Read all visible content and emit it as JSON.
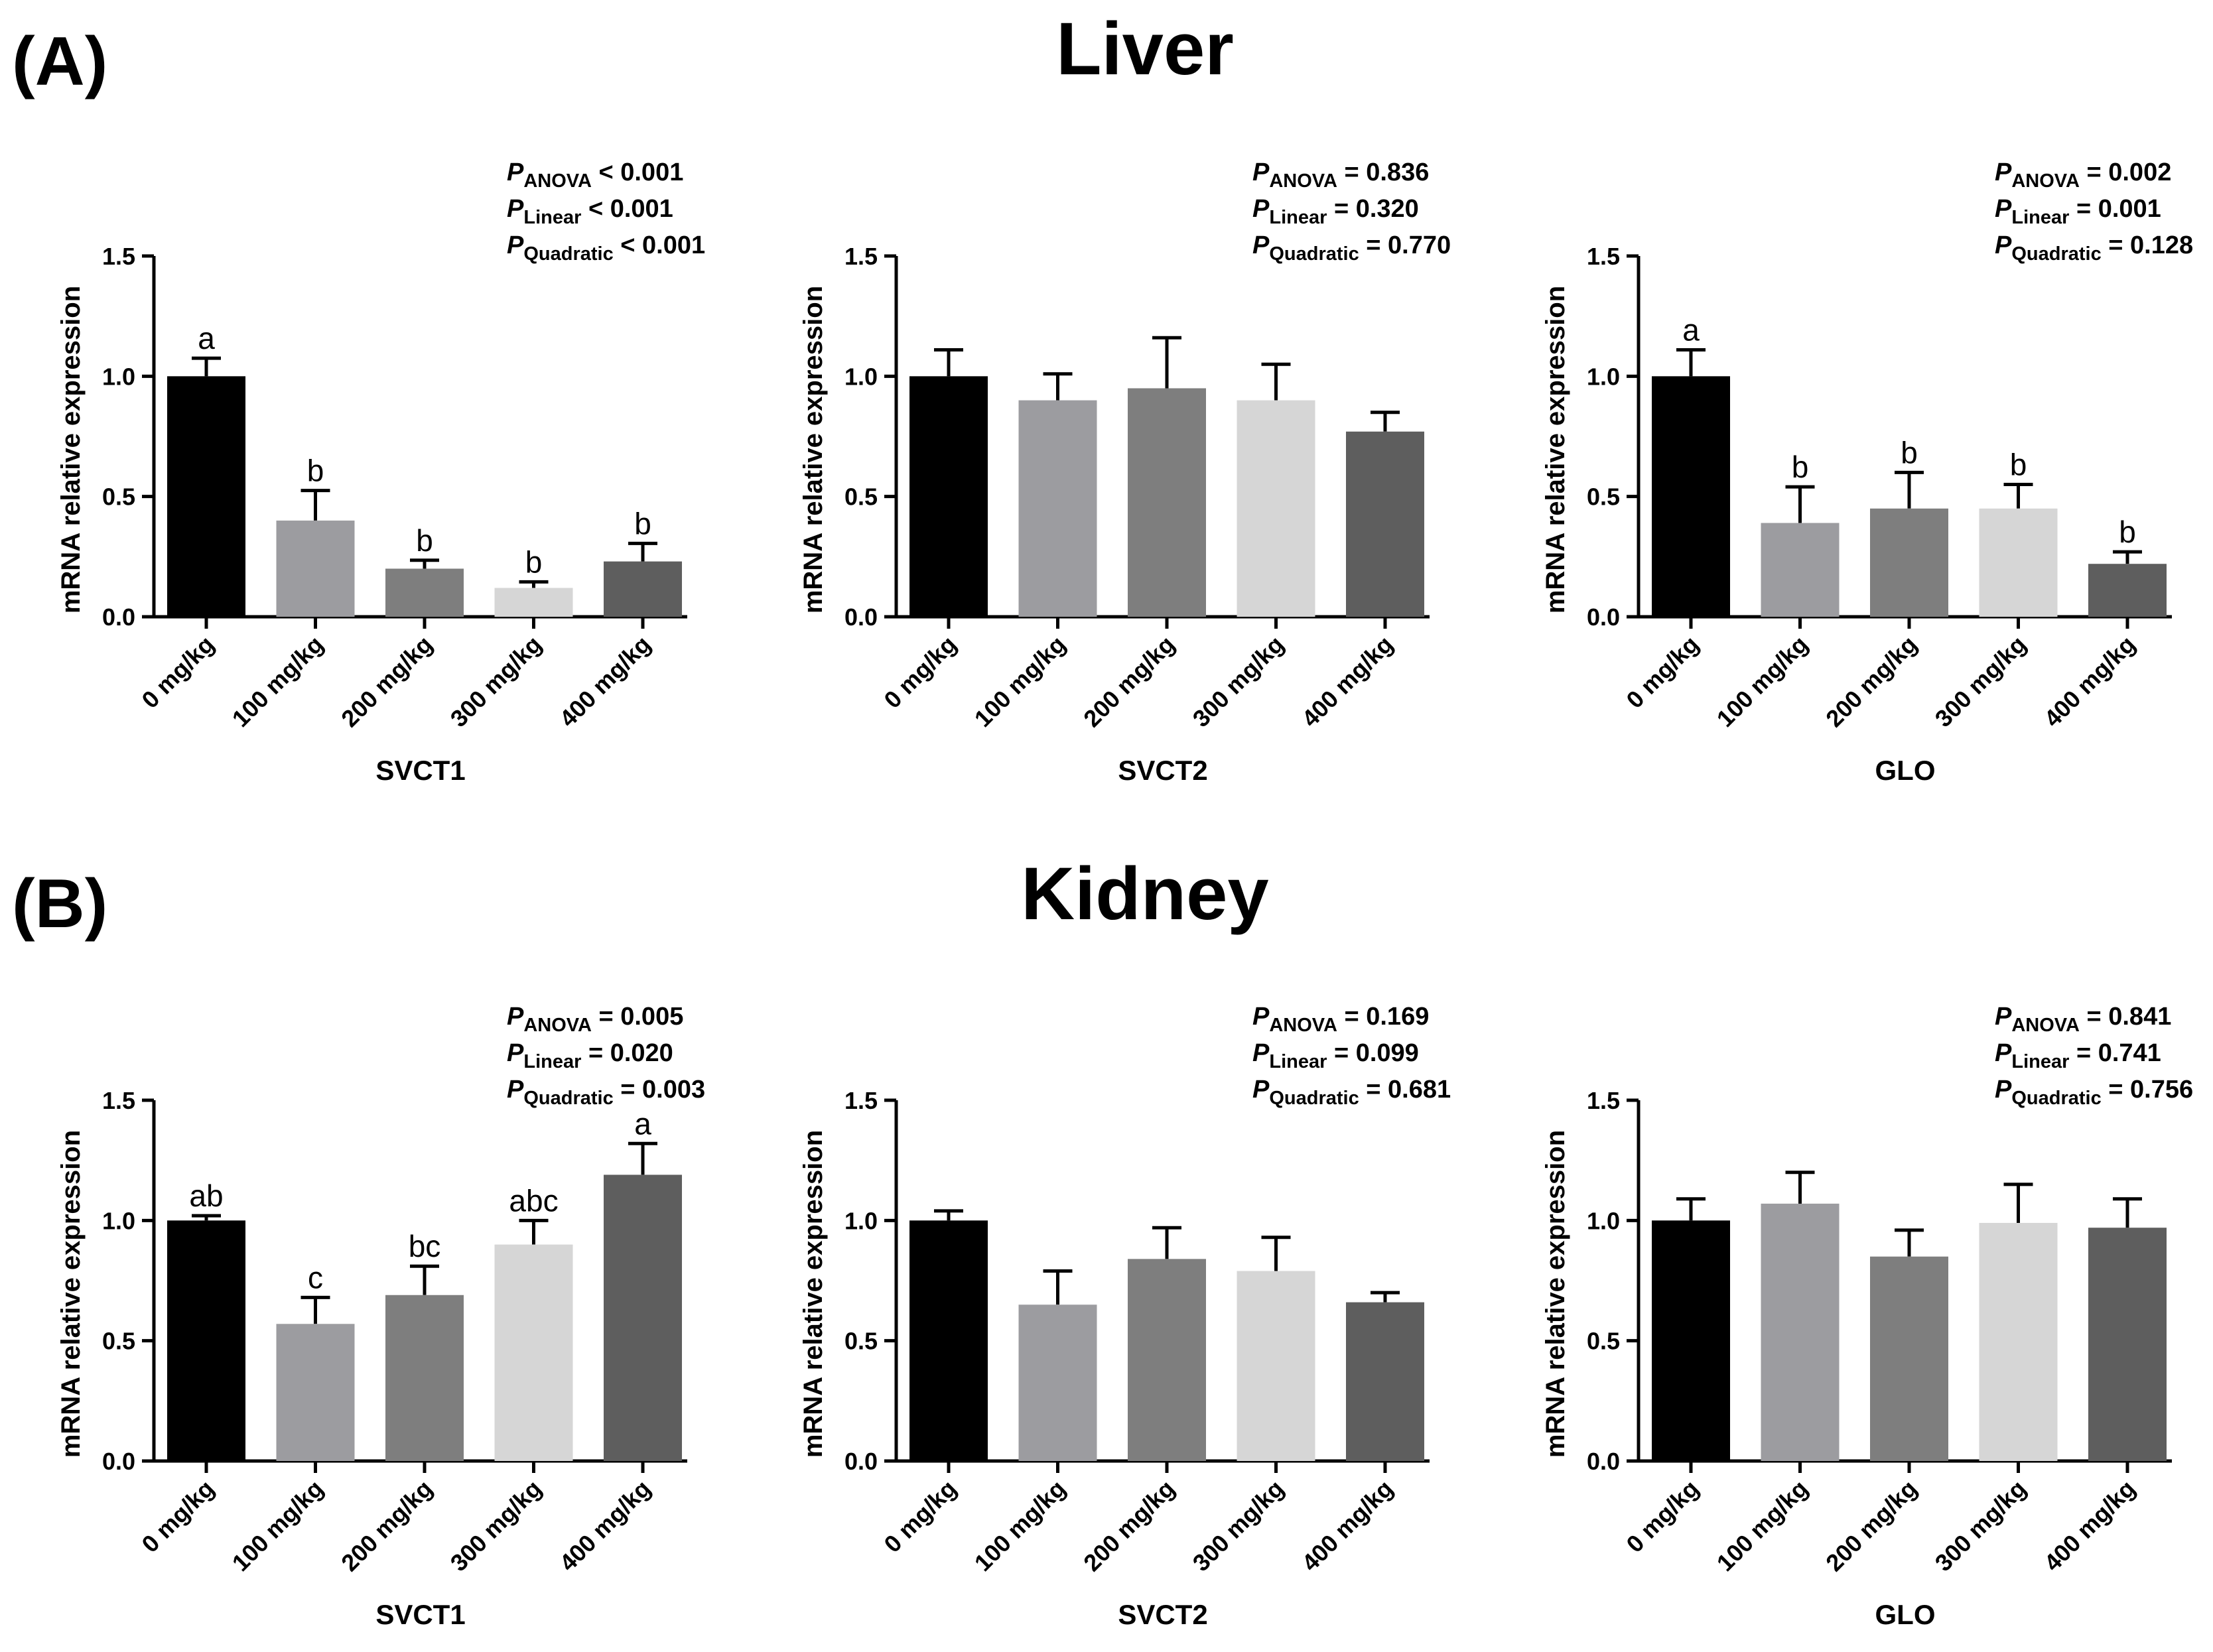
{
  "figure": {
    "panel_A": "(A)",
    "panel_B": "(B)",
    "section_A": "Liver",
    "section_B": "Kidney"
  },
  "chart_data": [
    {
      "type": "bar",
      "section": "Liver",
      "xlabel": "SVCT1",
      "ylabel": "mRNA relative expression",
      "categories": [
        "0 mg/kg",
        "100 mg/kg",
        "200 mg/kg",
        "300 mg/kg",
        "400 mg/kg"
      ],
      "values": [
        1.0,
        0.4,
        0.2,
        0.12,
        0.23
      ],
      "errors": [
        0.075,
        0.125,
        0.035,
        0.025,
        0.075
      ],
      "letters": [
        "a",
        "b",
        "b",
        "b",
        "b"
      ],
      "ylim": [
        0,
        1.5
      ],
      "yticks": [
        "0.0",
        "0.5",
        "1.0",
        "1.5"
      ],
      "stats": [
        {
          "label": "P",
          "sub": "ANOVA",
          "value": " < 0.001"
        },
        {
          "label": "P",
          "sub": "Linear",
          "value": " < 0.001"
        },
        {
          "label": "P",
          "sub": "Quadratic",
          "value": " < 0.001"
        }
      ]
    },
    {
      "type": "bar",
      "section": "Liver",
      "xlabel": "SVCT2",
      "ylabel": "mRNA relative expression",
      "categories": [
        "0 mg/kg",
        "100 mg/kg",
        "200 mg/kg",
        "300 mg/kg",
        "400 mg/kg"
      ],
      "values": [
        1.0,
        0.9,
        0.95,
        0.9,
        0.77
      ],
      "errors": [
        0.11,
        0.11,
        0.21,
        0.15,
        0.08
      ],
      "letters": [
        "",
        "",
        "",
        "",
        ""
      ],
      "ylim": [
        0,
        1.5
      ],
      "yticks": [
        "0.0",
        "0.5",
        "1.0",
        "1.5"
      ],
      "stats": [
        {
          "label": "P",
          "sub": "ANOVA",
          "value": " = 0.836"
        },
        {
          "label": "P",
          "sub": "Linear",
          "value": " = 0.320"
        },
        {
          "label": "P",
          "sub": "Quadratic",
          "value": " = 0.770"
        }
      ]
    },
    {
      "type": "bar",
      "section": "Liver",
      "xlabel": "GLO",
      "ylabel": "mRNA relative expression",
      "categories": [
        "0 mg/kg",
        "100 mg/kg",
        "200 mg/kg",
        "300 mg/kg",
        "400 mg/kg"
      ],
      "values": [
        1.0,
        0.39,
        0.45,
        0.45,
        0.22
      ],
      "errors": [
        0.11,
        0.15,
        0.15,
        0.1,
        0.05
      ],
      "letters": [
        "a",
        "b",
        "b",
        "b",
        "b"
      ],
      "ylim": [
        0,
        1.5
      ],
      "yticks": [
        "0.0",
        "0.5",
        "1.0",
        "1.5"
      ],
      "stats": [
        {
          "label": "P",
          "sub": "ANOVA",
          "value": " =  0.002"
        },
        {
          "label": "P",
          "sub": "Linear",
          "value": " = 0.001"
        },
        {
          "label": "P",
          "sub": "Quadratic",
          "value": " = 0.128"
        }
      ]
    },
    {
      "type": "bar",
      "section": "Kidney",
      "xlabel": "SVCT1",
      "ylabel": "mRNA relative expression",
      "categories": [
        "0 mg/kg",
        "100 mg/kg",
        "200 mg/kg",
        "300 mg/kg",
        "400 mg/kg"
      ],
      "values": [
        1.0,
        0.57,
        0.69,
        0.9,
        1.19
      ],
      "errors": [
        0.02,
        0.11,
        0.12,
        0.1,
        0.13
      ],
      "letters": [
        "ab",
        "c",
        "bc",
        "abc",
        "a"
      ],
      "ylim": [
        0,
        1.5
      ],
      "yticks": [
        "0.0",
        "0.5",
        "1.0",
        "1.5"
      ],
      "stats": [
        {
          "label": "P",
          "sub": "ANOVA",
          "value": " =  0.005"
        },
        {
          "label": "P",
          "sub": "Linear",
          "value": " = 0.020"
        },
        {
          "label": "P",
          "sub": "Quadratic",
          "value": " = 0.003"
        }
      ]
    },
    {
      "type": "bar",
      "section": "Kidney",
      "xlabel": "SVCT2",
      "ylabel": "mRNA relative expression",
      "categories": [
        "0 mg/kg",
        "100 mg/kg",
        "200 mg/kg",
        "300 mg/kg",
        "400 mg/kg"
      ],
      "values": [
        1.0,
        0.65,
        0.84,
        0.79,
        0.66
      ],
      "errors": [
        0.04,
        0.14,
        0.13,
        0.14,
        0.04
      ],
      "letters": [
        "",
        "",
        "",
        "",
        ""
      ],
      "ylim": [
        0,
        1.5
      ],
      "yticks": [
        "0.0",
        "0.5",
        "1.0",
        "1.5"
      ],
      "stats": [
        {
          "label": "P",
          "sub": "ANOVA",
          "value": " =  0.169"
        },
        {
          "label": "P",
          "sub": "Linear",
          "value": " = 0.099"
        },
        {
          "label": "P",
          "sub": "Quadratic",
          "value": " = 0.681"
        }
      ]
    },
    {
      "type": "bar",
      "section": "Kidney",
      "xlabel": "GLO",
      "ylabel": "mRNA relative expression",
      "categories": [
        "0 mg/kg",
        "100 mg/kg",
        "200 mg/kg",
        "300 mg/kg",
        "400 mg/kg"
      ],
      "values": [
        1.0,
        1.07,
        0.85,
        0.99,
        0.97
      ],
      "errors": [
        0.09,
        0.13,
        0.11,
        0.16,
        0.12
      ],
      "letters": [
        "",
        "",
        "",
        "",
        ""
      ],
      "ylim": [
        0,
        1.5
      ],
      "yticks": [
        "0.0",
        "0.5",
        "1.0",
        "1.5"
      ],
      "stats": [
        {
          "label": "P",
          "sub": "ANOVA",
          "value": " =  0.841"
        },
        {
          "label": "P",
          "sub": "Linear",
          "value": " = 0.741"
        },
        {
          "label": "P",
          "sub": "Quadratic",
          "value": " = 0.756"
        }
      ]
    }
  ],
  "bar_colors": [
    "#000000",
    "#9c9ca0",
    "#7e7e7e",
    "#d6d6d6",
    "#5e5e5e"
  ]
}
